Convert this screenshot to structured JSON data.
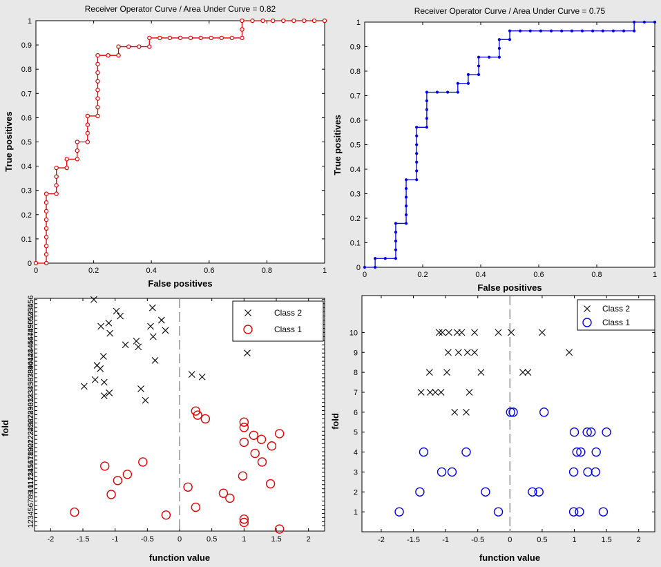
{
  "figure": {
    "background": "#e8e8e8"
  },
  "chart_data": [
    {
      "id": "roc-red",
      "type": "line",
      "title": "Receiver Operator Curve / Area Under Curve = 0.82",
      "xlabel": "False positives",
      "ylabel": "True positives",
      "xlim": [
        0,
        1
      ],
      "ylim": [
        0,
        1
      ],
      "xticks": [
        "0",
        "0.2",
        "0.4",
        "0.6",
        "0.8",
        "1"
      ],
      "xtick_values": [
        0,
        0.2,
        0.4,
        0.6,
        0.8,
        1
      ],
      "yticks": [
        "0",
        "0.1",
        "0.2",
        "0.3",
        "0.4",
        "0.5",
        "0.6",
        "0.7",
        "0.8",
        "0.9",
        "1"
      ],
      "ytick_values": [
        0,
        0.1,
        0.2,
        0.3,
        0.4,
        0.5,
        0.6,
        0.7,
        0.8,
        0.9,
        1
      ],
      "color": "#e00000",
      "marker": "circle",
      "points": [
        [
          0.0,
          0.0
        ],
        [
          0.036,
          0.0
        ],
        [
          0.036,
          0.036
        ],
        [
          0.036,
          0.071
        ],
        [
          0.036,
          0.107
        ],
        [
          0.036,
          0.143
        ],
        [
          0.036,
          0.179
        ],
        [
          0.036,
          0.214
        ],
        [
          0.036,
          0.25
        ],
        [
          0.036,
          0.286
        ],
        [
          0.071,
          0.286
        ],
        [
          0.071,
          0.321
        ],
        [
          0.071,
          0.357
        ],
        [
          0.071,
          0.393
        ],
        [
          0.107,
          0.393
        ],
        [
          0.107,
          0.429
        ],
        [
          0.143,
          0.429
        ],
        [
          0.143,
          0.464
        ],
        [
          0.143,
          0.5
        ],
        [
          0.179,
          0.5
        ],
        [
          0.179,
          0.536
        ],
        [
          0.179,
          0.571
        ],
        [
          0.179,
          0.607
        ],
        [
          0.214,
          0.607
        ],
        [
          0.214,
          0.643
        ],
        [
          0.214,
          0.679
        ],
        [
          0.214,
          0.714
        ],
        [
          0.214,
          0.75
        ],
        [
          0.214,
          0.786
        ],
        [
          0.214,
          0.821
        ],
        [
          0.214,
          0.857
        ],
        [
          0.25,
          0.857
        ],
        [
          0.286,
          0.857
        ],
        [
          0.286,
          0.893
        ],
        [
          0.321,
          0.893
        ],
        [
          0.357,
          0.893
        ],
        [
          0.393,
          0.893
        ],
        [
          0.393,
          0.929
        ],
        [
          0.429,
          0.929
        ],
        [
          0.464,
          0.929
        ],
        [
          0.5,
          0.929
        ],
        [
          0.536,
          0.929
        ],
        [
          0.571,
          0.929
        ],
        [
          0.607,
          0.929
        ],
        [
          0.643,
          0.929
        ],
        [
          0.679,
          0.929
        ],
        [
          0.714,
          0.929
        ],
        [
          0.714,
          0.964
        ],
        [
          0.714,
          1.0
        ],
        [
          0.75,
          1.0
        ],
        [
          0.786,
          1.0
        ],
        [
          0.821,
          1.0
        ],
        [
          0.857,
          1.0
        ],
        [
          0.893,
          1.0
        ],
        [
          0.929,
          1.0
        ],
        [
          0.964,
          1.0
        ],
        [
          1.0,
          1.0
        ]
      ]
    },
    {
      "id": "roc-blue",
      "type": "line",
      "title": "Receiver Operator Curve / Area Under Curve = 0.75",
      "xlabel": "False positives",
      "ylabel": "True positives",
      "xlim": [
        0,
        1
      ],
      "ylim": [
        0,
        1
      ],
      "xticks": [
        "0",
        "0.2",
        "0.4",
        "0.6",
        "0.8",
        "1"
      ],
      "xtick_values": [
        0,
        0.2,
        0.4,
        0.6,
        0.8,
        1
      ],
      "yticks": [
        "0",
        "0.1",
        "0.2",
        "0.3",
        "0.4",
        "0.5",
        "0.6",
        "0.7",
        "0.8",
        "0.9",
        "1"
      ],
      "ytick_values": [
        0,
        0.1,
        0.2,
        0.3,
        0.4,
        0.5,
        0.6,
        0.7,
        0.8,
        0.9,
        1
      ],
      "color": "#0000e0",
      "marker": "dot",
      "points": [
        [
          0.0,
          0.0
        ],
        [
          0.036,
          0.0
        ],
        [
          0.036,
          0.036
        ],
        [
          0.071,
          0.036
        ],
        [
          0.107,
          0.036
        ],
        [
          0.107,
          0.071
        ],
        [
          0.107,
          0.107
        ],
        [
          0.107,
          0.143
        ],
        [
          0.107,
          0.179
        ],
        [
          0.143,
          0.179
        ],
        [
          0.143,
          0.214
        ],
        [
          0.143,
          0.25
        ],
        [
          0.143,
          0.286
        ],
        [
          0.143,
          0.321
        ],
        [
          0.143,
          0.357
        ],
        [
          0.179,
          0.357
        ],
        [
          0.179,
          0.393
        ],
        [
          0.179,
          0.429
        ],
        [
          0.179,
          0.464
        ],
        [
          0.179,
          0.5
        ],
        [
          0.179,
          0.536
        ],
        [
          0.179,
          0.571
        ],
        [
          0.214,
          0.571
        ],
        [
          0.214,
          0.607
        ],
        [
          0.214,
          0.643
        ],
        [
          0.214,
          0.679
        ],
        [
          0.214,
          0.714
        ],
        [
          0.25,
          0.714
        ],
        [
          0.286,
          0.714
        ],
        [
          0.321,
          0.714
        ],
        [
          0.321,
          0.75
        ],
        [
          0.357,
          0.75
        ],
        [
          0.357,
          0.786
        ],
        [
          0.393,
          0.786
        ],
        [
          0.393,
          0.821
        ],
        [
          0.393,
          0.857
        ],
        [
          0.429,
          0.857
        ],
        [
          0.464,
          0.857
        ],
        [
          0.464,
          0.893
        ],
        [
          0.464,
          0.929
        ],
        [
          0.5,
          0.929
        ],
        [
          0.5,
          0.964
        ],
        [
          0.536,
          0.964
        ],
        [
          0.571,
          0.964
        ],
        [
          0.607,
          0.964
        ],
        [
          0.643,
          0.964
        ],
        [
          0.679,
          0.964
        ],
        [
          0.714,
          0.964
        ],
        [
          0.75,
          0.964
        ],
        [
          0.786,
          0.964
        ],
        [
          0.821,
          0.964
        ],
        [
          0.857,
          0.964
        ],
        [
          0.893,
          0.964
        ],
        [
          0.929,
          0.964
        ],
        [
          0.929,
          1.0
        ],
        [
          0.964,
          1.0
        ],
        [
          1.0,
          1.0
        ]
      ]
    },
    {
      "id": "scatter-red",
      "type": "scatter",
      "title": "",
      "xlabel": "function value",
      "ylabel": "fold",
      "xlim": [
        -2.25,
        2.25
      ],
      "ylim": [
        -0.3,
        56.3
      ],
      "xticks": [
        "-2",
        "-1.5",
        "-1",
        "-0.5",
        "0",
        "0.5",
        "1",
        "1.5",
        "2"
      ],
      "xtick_values": [
        -2,
        -1.5,
        -1,
        -0.5,
        0,
        0.5,
        1,
        1.5,
        2
      ],
      "yticks": [
        "1",
        "2",
        "3",
        "4",
        "5",
        "6",
        "7",
        "8",
        "9",
        "10",
        "11",
        "12",
        "13",
        "14",
        "15",
        "16",
        "17",
        "18",
        "19",
        "20",
        "21",
        "22",
        "23",
        "24",
        "25",
        "26",
        "27",
        "28",
        "29",
        "30",
        "31",
        "32",
        "33",
        "34",
        "35",
        "36",
        "37",
        "38",
        "39",
        "40",
        "41",
        "42",
        "43",
        "44",
        "45",
        "46",
        "47",
        "48",
        "49",
        "50",
        "51",
        "52",
        "53",
        "54",
        "55",
        "56"
      ],
      "ytick_values": [
        1,
        2,
        3,
        4,
        5,
        6,
        7,
        8,
        9,
        10,
        11,
        12,
        13,
        14,
        15,
        16,
        17,
        18,
        19,
        20,
        21,
        22,
        23,
        24,
        25,
        26,
        27,
        28,
        29,
        30,
        31,
        32,
        33,
        34,
        35,
        36,
        37,
        38,
        39,
        40,
        41,
        42,
        43,
        44,
        45,
        46,
        47,
        48,
        49,
        50,
        51,
        52,
        53,
        54,
        55,
        56
      ],
      "legend": {
        "position": "top-right",
        "entries": [
          "Class 2",
          "Class 1"
        ]
      },
      "series": [
        {
          "name": "Class 2",
          "marker": "x",
          "color": "#000000",
          "points": [
            [
              -1.33,
              56
            ],
            [
              -0.42,
              54
            ],
            [
              -0.98,
              53.2
            ],
            [
              -0.92,
              52
            ],
            [
              -0.28,
              51
            ],
            [
              -1.22,
              49.5
            ],
            [
              -1.1,
              50.3
            ],
            [
              -0.45,
              49.5
            ],
            [
              -0.22,
              48.5
            ],
            [
              -1.08,
              47.8
            ],
            [
              -0.41,
              47
            ],
            [
              -0.67,
              45.9
            ],
            [
              -0.84,
              45
            ],
            [
              -0.64,
              44.5
            ],
            [
              1.05,
              43
            ],
            [
              -1.18,
              42.2
            ],
            [
              -0.38,
              41.2
            ],
            [
              -1.28,
              40
            ],
            [
              -1.23,
              39.2
            ],
            [
              0.19,
              37.8
            ],
            [
              0.35,
              37.2
            ],
            [
              -1.31,
              36.5
            ],
            [
              -1.17,
              35.9
            ],
            [
              -1.48,
              34.9
            ],
            [
              -0.6,
              34.3
            ],
            [
              -1.09,
              33.3
            ],
            [
              -1.17,
              32.6
            ],
            [
              -0.53,
              31.5
            ]
          ]
        },
        {
          "name": "Class 1",
          "marker": "o",
          "color": "#e00000",
          "points": [
            [
              0.25,
              28.9
            ],
            [
              0.28,
              27.9
            ],
            [
              0.4,
              27
            ],
            [
              1.0,
              26.2
            ],
            [
              1.0,
              24.9
            ],
            [
              1.55,
              23.4
            ],
            [
              1.15,
              23
            ],
            [
              1.27,
              22
            ],
            [
              1.0,
              21.3
            ],
            [
              1.43,
              20.4
            ],
            [
              1.17,
              18.6
            ],
            [
              1.28,
              16.5
            ],
            [
              -1.16,
              15.5
            ],
            [
              -0.57,
              16.5
            ],
            [
              -0.81,
              13.5
            ],
            [
              0.98,
              13.1
            ],
            [
              -0.96,
              12
            ],
            [
              1.41,
              11.2
            ],
            [
              0.13,
              10.4
            ],
            [
              -1.06,
              8.6
            ],
            [
              0.68,
              8.9
            ],
            [
              0.78,
              7.7
            ],
            [
              0.25,
              5.5
            ],
            [
              -1.63,
              4.3
            ],
            [
              -0.21,
              3.6
            ],
            [
              1.0,
              2.6
            ],
            [
              1.0,
              1.8
            ],
            [
              1.55,
              0.2
            ]
          ]
        }
      ]
    },
    {
      "id": "scatter-blue",
      "type": "scatter",
      "title": "",
      "xlabel": "function value",
      "ylabel": "fold",
      "xlim": [
        -2.3,
        2.25
      ],
      "ylim": [
        0,
        11.85
      ],
      "xticks": [
        "-2",
        "-1.5",
        "-1",
        "-0.5",
        "0",
        "0.5",
        "1",
        "1.5",
        "2"
      ],
      "xtick_values": [
        -2,
        -1.5,
        -1,
        -0.5,
        0,
        0.5,
        1,
        1.5,
        2
      ],
      "yticks": [
        "1",
        "2",
        "3",
        "4",
        "5",
        "6",
        "7",
        "8",
        "9",
        "10"
      ],
      "ytick_values": [
        1,
        2,
        3,
        4,
        5,
        6,
        7,
        8,
        9,
        10
      ],
      "legend": {
        "position": "top-right",
        "entries": [
          "Class 2",
          "Class 1"
        ]
      },
      "series": [
        {
          "name": "Class 2",
          "marker": "x",
          "color": "#000000",
          "points": [
            [
              -1.1,
              10
            ],
            [
              -1.05,
              10
            ],
            [
              -0.95,
              10
            ],
            [
              -0.82,
              10
            ],
            [
              -0.75,
              10
            ],
            [
              -0.55,
              10
            ],
            [
              -0.18,
              10
            ],
            [
              0.02,
              10
            ],
            [
              0.5,
              10
            ],
            [
              -0.96,
              9
            ],
            [
              -0.8,
              9
            ],
            [
              -0.66,
              9
            ],
            [
              -0.55,
              9
            ],
            [
              0.92,
              9
            ],
            [
              -1.25,
              8
            ],
            [
              -0.98,
              8
            ],
            [
              -0.45,
              8
            ],
            [
              0.2,
              8
            ],
            [
              0.28,
              8
            ],
            [
              -1.38,
              7
            ],
            [
              -1.24,
              7
            ],
            [
              -1.16,
              7
            ],
            [
              -1.07,
              7
            ],
            [
              -0.63,
              7
            ],
            [
              -0.86,
              6
            ],
            [
              -0.68,
              6
            ]
          ]
        },
        {
          "name": "Class 1",
          "marker": "o",
          "color": "#0000e0",
          "points": [
            [
              0.01,
              6
            ],
            [
              0.05,
              6
            ],
            [
              0.53,
              6
            ],
            [
              1.0,
              5
            ],
            [
              1.2,
              5
            ],
            [
              1.26,
              5
            ],
            [
              1.5,
              5
            ],
            [
              -1.34,
              4
            ],
            [
              -0.68,
              4
            ],
            [
              1.04,
              4
            ],
            [
              1.1,
              4
            ],
            [
              1.34,
              4
            ],
            [
              -1.06,
              3
            ],
            [
              -0.9,
              3
            ],
            [
              0.99,
              3
            ],
            [
              1.21,
              3
            ],
            [
              1.33,
              3
            ],
            [
              -1.4,
              2
            ],
            [
              -0.38,
              2
            ],
            [
              0.35,
              2
            ],
            [
              0.45,
              2
            ],
            [
              -1.72,
              1
            ],
            [
              -0.18,
              1
            ],
            [
              0.99,
              1
            ],
            [
              1.08,
              1
            ],
            [
              1.45,
              1
            ]
          ]
        }
      ]
    }
  ]
}
